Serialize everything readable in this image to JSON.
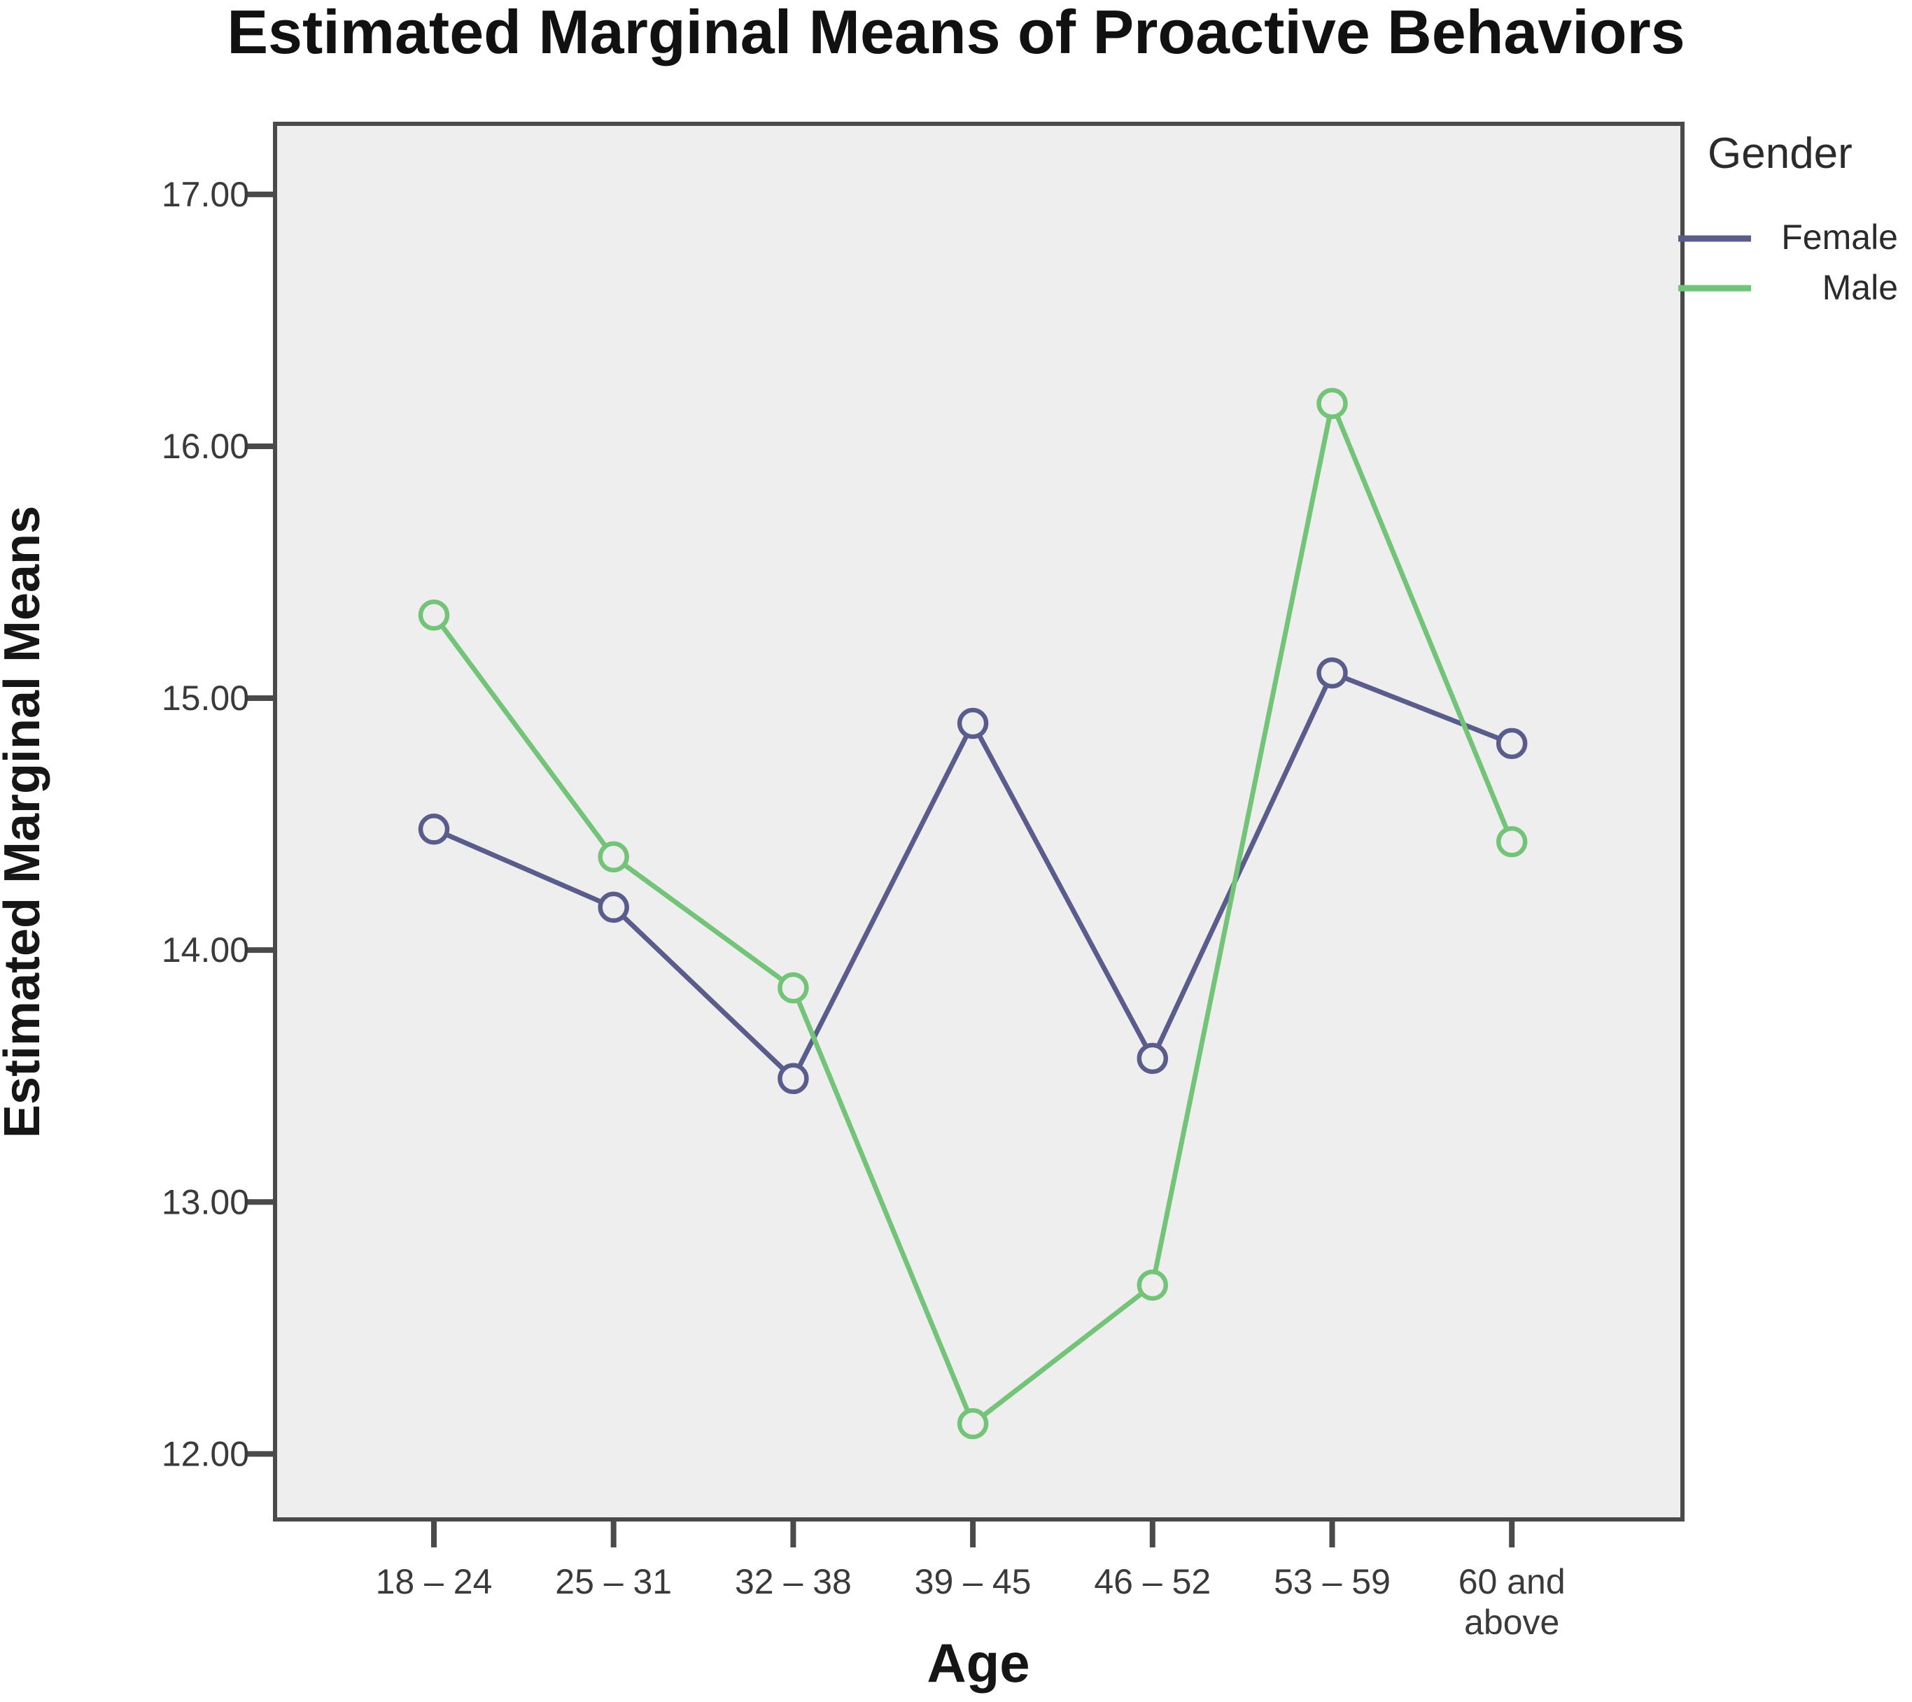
{
  "chart_data": {
    "type": "line",
    "title": "Estimated Marginal Means of Proactive Behaviors",
    "xlabel": "Age",
    "ylabel": "Estimated Marginal Means",
    "categories": [
      "18 – 24",
      "25 – 31",
      "32 – 38",
      "39 – 45",
      "46 – 52",
      "53 – 59",
      "60 and above"
    ],
    "series": [
      {
        "name": "Female",
        "color": "#5a5c8c",
        "values": [
          14.48,
          14.17,
          13.49,
          14.9,
          13.57,
          15.1,
          14.82
        ]
      },
      {
        "name": "Male",
        "color": "#73c478",
        "values": [
          15.33,
          14.37,
          13.85,
          12.12,
          12.67,
          16.17,
          14.43
        ]
      }
    ],
    "ylim": [
      11.74,
      17.28
    ],
    "yticks": [
      {
        "value": 17,
        "label": "17.00"
      },
      {
        "value": 16,
        "label": "16.00"
      },
      {
        "value": 15,
        "label": "15.00"
      },
      {
        "value": 14,
        "label": "14.00"
      },
      {
        "value": 13,
        "label": "13.00"
      },
      {
        "value": 12,
        "label": "12.00"
      }
    ],
    "legend": {
      "title": "Gender",
      "position": "top-right-outside"
    },
    "grid": false,
    "plot_background": "#eeeeef",
    "axis_color": "#4a4a4a",
    "tick_label_color": "#3a3a3a",
    "marker_style": "open-circle"
  }
}
